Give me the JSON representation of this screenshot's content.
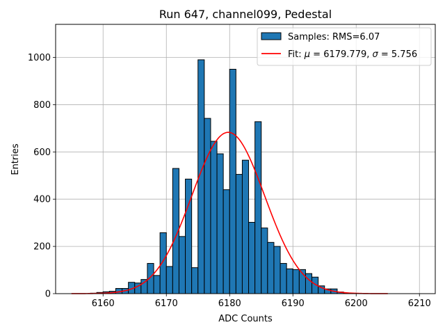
{
  "chart_data": {
    "type": "bar",
    "title": "Run 647, channel099, Pedestal",
    "xlabel": "ADC Counts",
    "ylabel": "Entries",
    "xlim": [
      6152.5,
      6212.5
    ],
    "ylim": [
      0,
      1140
    ],
    "grid": true,
    "legend_position": "top-right",
    "x_ticks": [
      6160,
      6170,
      6180,
      6190,
      6200,
      6210
    ],
    "y_ticks": [
      0,
      200,
      400,
      600,
      800,
      1000
    ],
    "histogram": {
      "name": "Samples: RMS=6.07",
      "color": "#1f77b4",
      "bin_edges_start": 6158,
      "bin_width": 1,
      "values": [
        2,
        5,
        8,
        10,
        22,
        22,
        48,
        45,
        60,
        128,
        77,
        258,
        115,
        530,
        242,
        485,
        110,
        990,
        742,
        645,
        592,
        440,
        950,
        505,
        565,
        302,
        728,
        278,
        217,
        200,
        128,
        105,
        102,
        102,
        85,
        70,
        33,
        20,
        20,
        7,
        2
      ]
    },
    "fit": {
      "name_prefix": "Fit: ",
      "mu_symbol": "μ",
      "sigma_symbol": "σ",
      "mu_text": " = 6179.779, ",
      "sigma_text": " = 5.756",
      "color": "#ff0000",
      "mu": 6179.779,
      "sigma": 5.756,
      "amplitude": 683,
      "x_range": [
        6155,
        6205
      ]
    }
  }
}
